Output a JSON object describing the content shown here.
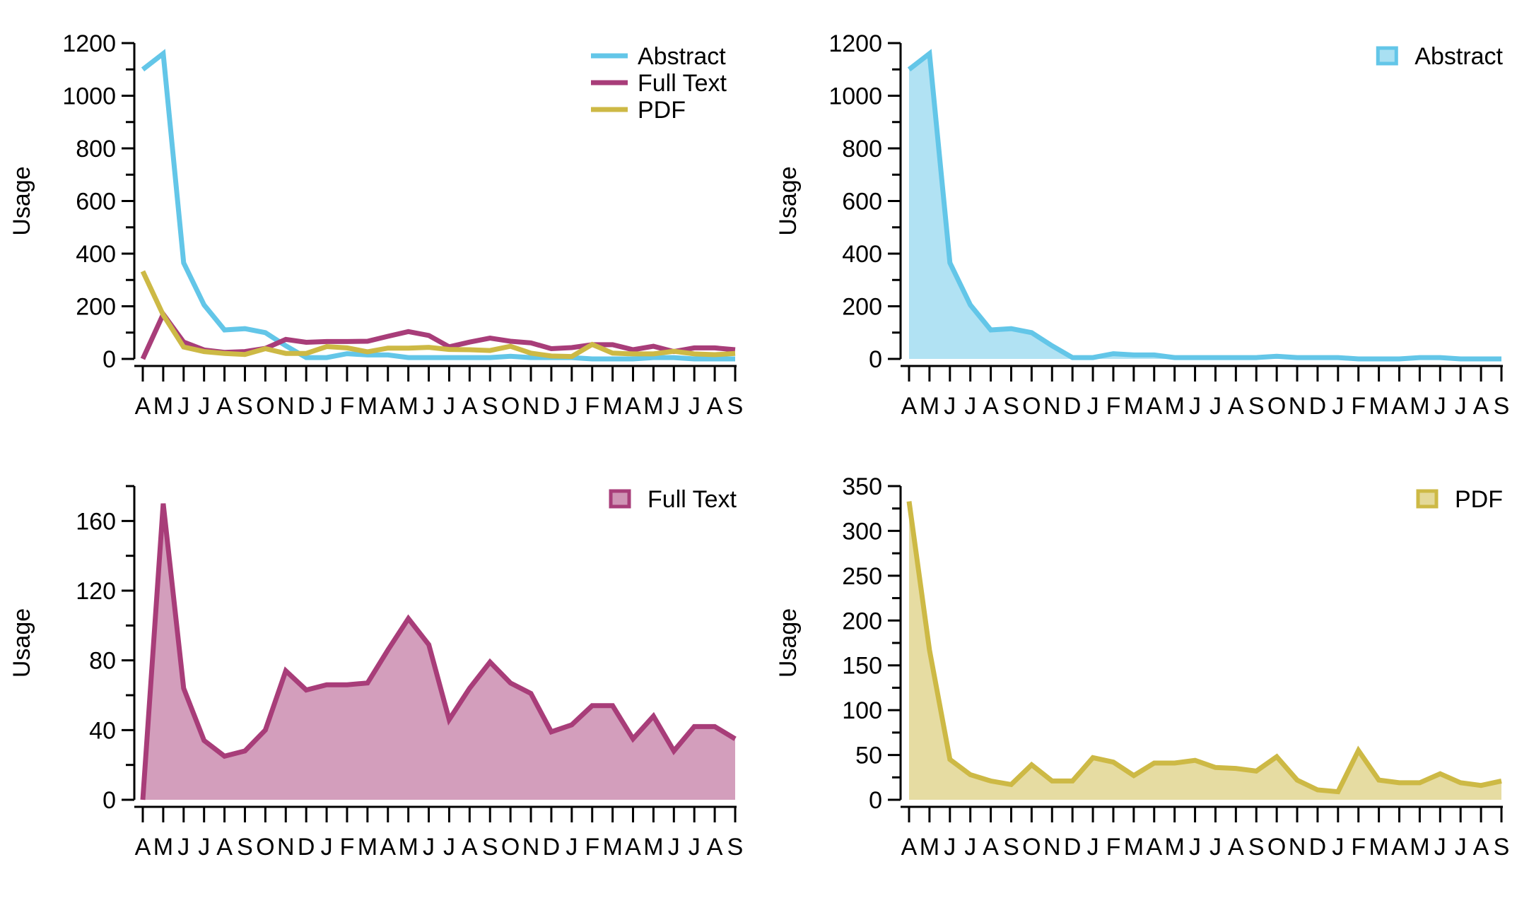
{
  "months": [
    "A",
    "M",
    "J",
    "J",
    "A",
    "S",
    "O",
    "N",
    "D",
    "J",
    "F",
    "M",
    "A",
    "M",
    "J",
    "J",
    "A",
    "S",
    "O",
    "N",
    "D",
    "J",
    "F",
    "M",
    "A",
    "M",
    "J",
    "J",
    "A",
    "S"
  ],
  "colors": {
    "abstract": "#63c6e8",
    "fulltext": "#a83d79",
    "pdf": "#cdb945"
  },
  "chart_data": [
    {
      "type": "line",
      "ylabel": "Usage",
      "ylim": [
        0,
        1200
      ],
      "yticks": [
        0,
        200,
        400,
        600,
        800,
        1000,
        1200
      ],
      "legend": "top-right",
      "series": [
        {
          "name": "Abstract",
          "color": "#63c6e8",
          "values": [
            1100,
            1160,
            365,
            205,
            110,
            115,
            100,
            50,
            5,
            5,
            20,
            15,
            15,
            5,
            5,
            5,
            5,
            5,
            10,
            5,
            5,
            5,
            0,
            0,
            0,
            5,
            5,
            0,
            0,
            0
          ]
        },
        {
          "name": "Full Text",
          "color": "#a83d79",
          "values": [
            0,
            170,
            64,
            34,
            25,
            28,
            40,
            74,
            63,
            66,
            66,
            67,
            86,
            104,
            89,
            46,
            64,
            79,
            67,
            61,
            39,
            43,
            54,
            54,
            35,
            48,
            28,
            42,
            42,
            35
          ]
        },
        {
          "name": "PDF",
          "color": "#cdb945",
          "values": [
            333,
            167,
            45,
            28,
            21,
            17,
            39,
            21,
            21,
            47,
            42,
            27,
            41,
            41,
            44,
            36,
            35,
            32,
            48,
            22,
            11,
            9,
            55,
            22,
            19,
            19,
            29,
            19,
            16,
            21
          ]
        }
      ]
    },
    {
      "type": "area",
      "ylabel": "Usage",
      "ylim": [
        0,
        1200
      ],
      "yticks": [
        0,
        200,
        400,
        600,
        800,
        1000,
        1200
      ],
      "legend": "top-right",
      "series": [
        {
          "name": "Abstract",
          "color": "#63c6e8",
          "values": [
            1100,
            1160,
            365,
            205,
            110,
            115,
            100,
            50,
            5,
            5,
            20,
            15,
            15,
            5,
            5,
            5,
            5,
            5,
            10,
            5,
            5,
            5,
            0,
            0,
            0,
            5,
            5,
            0,
            0,
            0
          ]
        }
      ]
    },
    {
      "type": "area",
      "ylabel": "Usage",
      "ylim": [
        0,
        180
      ],
      "yticks": [
        0,
        40,
        80,
        120,
        160
      ],
      "legend": "top-right",
      "series": [
        {
          "name": "Full Text",
          "color": "#a83d79",
          "values": [
            0,
            170,
            64,
            34,
            25,
            28,
            40,
            74,
            63,
            66,
            66,
            67,
            86,
            104,
            89,
            46,
            64,
            79,
            67,
            61,
            39,
            43,
            54,
            54,
            35,
            48,
            28,
            42,
            42,
            35
          ]
        }
      ]
    },
    {
      "type": "area",
      "ylabel": "Usage",
      "ylim": [
        0,
        350
      ],
      "yticks": [
        0,
        50,
        100,
        150,
        200,
        250,
        300,
        350
      ],
      "legend": "top-right",
      "series": [
        {
          "name": "PDF",
          "color": "#cdb945",
          "values": [
            333,
            167,
            45,
            28,
            21,
            17,
            39,
            21,
            21,
            47,
            42,
            27,
            41,
            41,
            44,
            36,
            35,
            32,
            48,
            22,
            11,
            9,
            55,
            22,
            19,
            19,
            29,
            19,
            16,
            21
          ]
        }
      ]
    }
  ]
}
